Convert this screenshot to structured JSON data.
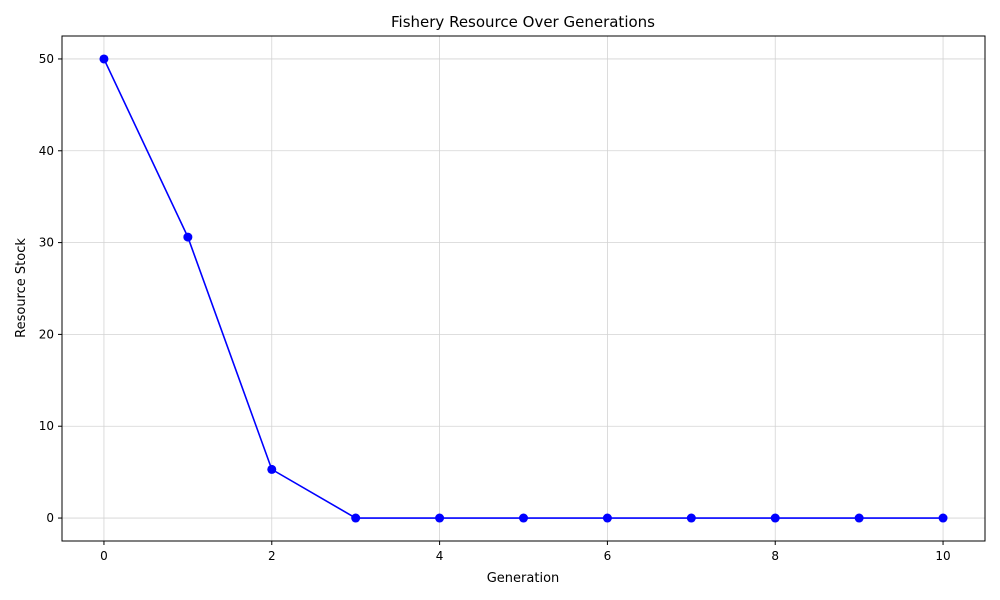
{
  "chart_data": {
    "type": "line",
    "title": "Fishery Resource Over Generations",
    "xlabel": "Generation",
    "ylabel": "Resource Stock",
    "xlim": [
      -0.5,
      10.5
    ],
    "ylim": [
      -2.5,
      52.5
    ],
    "xticks": [
      0,
      2,
      4,
      6,
      8,
      10
    ],
    "yticks": [
      0,
      10,
      20,
      30,
      40,
      50
    ],
    "grid": true,
    "color": "#0000ff",
    "marker": "circle",
    "x": [
      0,
      1,
      2,
      3,
      4,
      5,
      6,
      7,
      8,
      9,
      10
    ],
    "y": [
      50,
      30.6,
      5.3,
      0,
      0,
      0,
      0,
      0,
      0,
      0,
      0
    ]
  }
}
